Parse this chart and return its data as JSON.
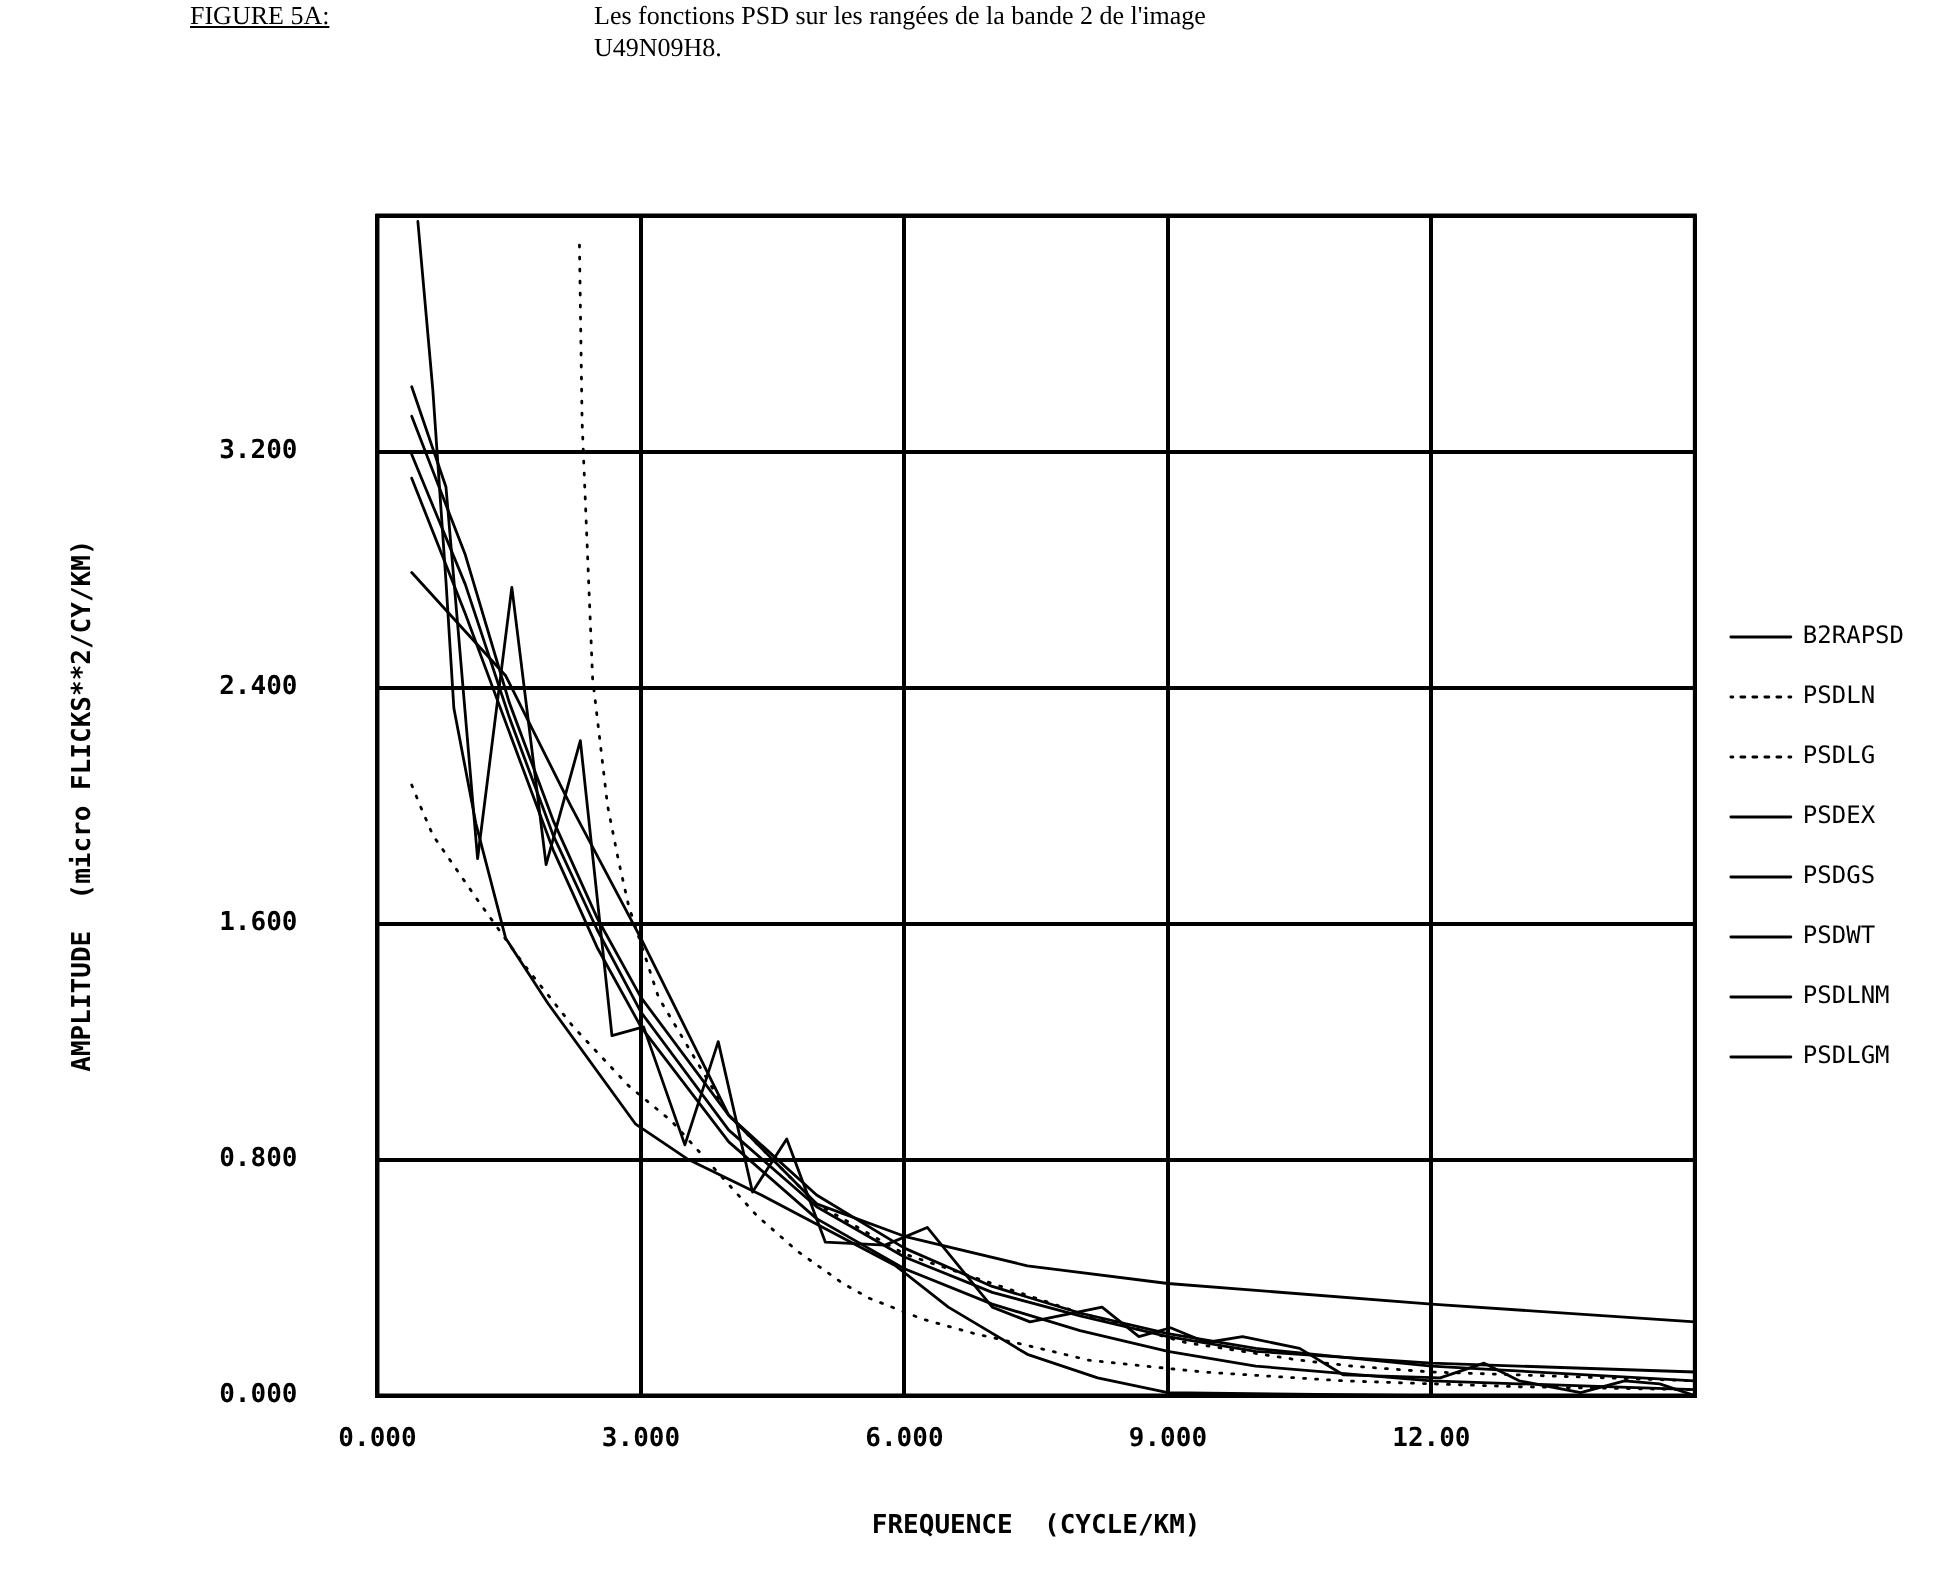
{
  "chart_data": {
    "type": "line",
    "title": "FIGURE 5A:",
    "subtitle": "Les fonctions PSD sur les rangées de la bande 2 de l'image U49N09H8.",
    "xlabel": "FREQUENCE  (CYCLE/KM)",
    "ylabel": "AMPLITUDE  (micro FLICKS**2/CY/KM)",
    "xlim": [
      0,
      15
    ],
    "ylim": [
      0,
      4
    ],
    "xticks": [
      {
        "value": 0,
        "label": "0.000"
      },
      {
        "value": 3,
        "label": "3.000"
      },
      {
        "value": 6,
        "label": "6.000"
      },
      {
        "value": 9,
        "label": "9.000"
      },
      {
        "value": 12,
        "label": "12.00"
      },
      {
        "value": 15,
        "label": null
      }
    ],
    "yticks": [
      {
        "value": 0,
        "label": "0.000"
      },
      {
        "value": 0.8,
        "label": "0.800"
      },
      {
        "value": 1.6,
        "label": "1.600"
      },
      {
        "value": 2.4,
        "label": "2.400"
      },
      {
        "value": 3.2,
        "label": "3.200"
      },
      {
        "value": 4,
        "label": null
      }
    ],
    "grid": true,
    "legend": "right",
    "marker": "none",
    "series": [
      {
        "name": "B2RAPSD",
        "color": "#000000",
        "line_style": "solid",
        "x": [
          0.39,
          0.78,
          1.14,
          1.53,
          1.92,
          2.31,
          2.67,
          3.03,
          3.5,
          3.88,
          4.27,
          4.66,
          5.1,
          5.78,
          6.26,
          7.0,
          7.43,
          8.25,
          8.67,
          9.03,
          9.44,
          9.85,
          10.5,
          11.0,
          12.1,
          12.6,
          13.0,
          13.7,
          14.2,
          14.6,
          15
        ],
        "values": [
          3.42,
          3.08,
          1.82,
          2.74,
          1.8,
          2.22,
          1.22,
          1.25,
          0.85,
          1.2,
          0.69,
          0.87,
          0.52,
          0.51,
          0.57,
          0.3,
          0.25,
          0.3,
          0.2,
          0.23,
          0.18,
          0.2,
          0.16,
          0.07,
          0.06,
          0.11,
          0.05,
          0.01,
          0.05,
          0.04,
          0.0
        ]
      },
      {
        "name": "PSDLN",
        "color": "#000000",
        "line_style": "dotted",
        "x": [
          2.3,
          2.33,
          2.45,
          2.62,
          2.74,
          2.86,
          3.2,
          4,
          5,
          6,
          8,
          9.2,
          10.5,
          11.1,
          12,
          15
        ],
        "values": [
          3.9,
          3.3,
          2.43,
          2.0,
          1.82,
          1.66,
          1.35,
          0.95,
          0.65,
          0.48,
          0.28,
          0.18,
          0.12,
          0.1,
          0.08,
          0.05
        ]
      },
      {
        "name": "PSDLG",
        "color": "#000000",
        "line_style": "dotted",
        "x": [
          0.39,
          0.5,
          0.63,
          1.14,
          1.67,
          2.23,
          2.86,
          3.35,
          4.32,
          4.78,
          5.3,
          5.6,
          6.2,
          6.8,
          7.4,
          8.1,
          9.4,
          11,
          13,
          15
        ],
        "values": [
          2.07,
          1.99,
          1.9,
          1.68,
          1.46,
          1.25,
          1.05,
          0.93,
          0.61,
          0.49,
          0.38,
          0.33,
          0.26,
          0.21,
          0.17,
          0.12,
          0.08,
          0.05,
          0.03,
          0.02
        ]
      },
      {
        "name": "PSDEX",
        "color": "#000000",
        "line_style": "solid",
        "x": [
          0.39,
          1.46,
          2.2,
          3.0,
          4.0,
          5.0,
          6.0,
          7.4,
          9.0,
          12.0,
          15.0
        ],
        "values": [
          2.79,
          2.44,
          2.0,
          1.55,
          0.95,
          0.65,
          0.54,
          0.44,
          0.38,
          0.31,
          0.25
        ]
      },
      {
        "name": "PSDGS",
        "color": "#000000",
        "line_style": "solid",
        "x": [
          0.46,
          0.63,
          0.78,
          0.87,
          1.12,
          1.46,
          1.94,
          2.94,
          3.54,
          4.37,
          5.9,
          6.5,
          7.4,
          8.2,
          9.0,
          12,
          15
        ],
        "values": [
          3.98,
          3.41,
          2.76,
          2.33,
          1.94,
          1.55,
          1.33,
          0.92,
          0.8,
          0.68,
          0.44,
          0.3,
          0.14,
          0.06,
          0.01,
          0.0,
          0.0
        ]
      },
      {
        "name": "PSDWT",
        "color": "#000000",
        "line_style": "solid",
        "x": [
          0.39,
          1,
          1.5,
          2,
          2.5,
          3,
          4,
          5,
          6,
          7,
          8,
          9,
          10,
          12,
          15
        ],
        "values": [
          3.32,
          2.85,
          2.35,
          1.95,
          1.62,
          1.35,
          0.95,
          0.68,
          0.5,
          0.37,
          0.28,
          0.21,
          0.16,
          0.1,
          0.05
        ]
      },
      {
        "name": "PSDLNM",
        "color": "#000000",
        "line_style": "solid",
        "x": [
          0.39,
          1,
          1.5,
          2,
          2.5,
          3,
          4,
          5,
          6,
          7,
          8,
          9,
          10,
          12,
          15
        ],
        "values": [
          3.19,
          2.75,
          2.3,
          1.9,
          1.58,
          1.3,
          0.9,
          0.64,
          0.47,
          0.35,
          0.27,
          0.2,
          0.15,
          0.11,
          0.08
        ]
      },
      {
        "name": "PSDLGM",
        "color": "#000000",
        "line_style": "solid",
        "x": [
          0.39,
          1,
          1.5,
          2,
          2.5,
          3,
          4,
          5,
          6,
          7,
          8,
          9,
          10,
          12,
          15
        ],
        "values": [
          3.11,
          2.65,
          2.25,
          1.85,
          1.52,
          1.25,
          0.86,
          0.6,
          0.43,
          0.31,
          0.22,
          0.15,
          0.1,
          0.05,
          0.02
        ]
      }
    ]
  }
}
